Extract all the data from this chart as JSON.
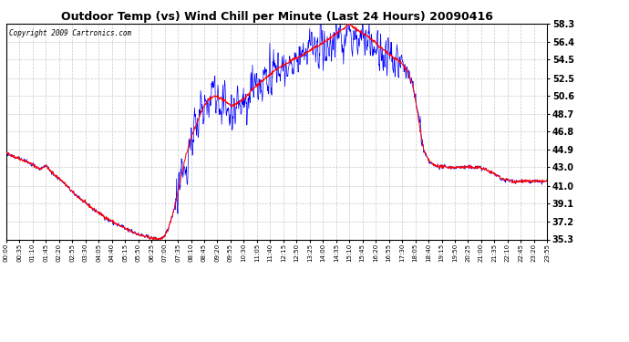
{
  "title": "Outdoor Temp (vs) Wind Chill per Minute (Last 24 Hours) 20090416",
  "copyright_text": "Copyright 2009 Cartronics.com",
  "yticks": [
    35.3,
    37.2,
    39.1,
    41.0,
    43.0,
    44.9,
    46.8,
    48.7,
    50.6,
    52.5,
    54.5,
    56.4,
    58.3
  ],
  "ymin": 35.3,
  "ymax": 58.3,
  "title_fontsize": 10,
  "copyright_fontsize": 6,
  "bg_color": "#ffffff",
  "plot_bg_color": "#ffffff",
  "grid_color": "#bbbbbb",
  "red_color": "#ff0000",
  "blue_color": "#0000ff",
  "xtick_labels": [
    "00:00",
    "00:35",
    "01:10",
    "01:45",
    "02:20",
    "02:55",
    "03:30",
    "04:05",
    "04:40",
    "05:15",
    "05:50",
    "06:25",
    "07:00",
    "07:35",
    "08:10",
    "08:45",
    "09:20",
    "09:55",
    "10:30",
    "11:05",
    "11:40",
    "12:15",
    "12:50",
    "13:25",
    "14:00",
    "14:35",
    "15:10",
    "15:45",
    "16:20",
    "16:55",
    "17:30",
    "18:05",
    "18:40",
    "19:15",
    "19:50",
    "20:25",
    "21:00",
    "21:35",
    "22:10",
    "22:45",
    "23:20",
    "23:55"
  ]
}
